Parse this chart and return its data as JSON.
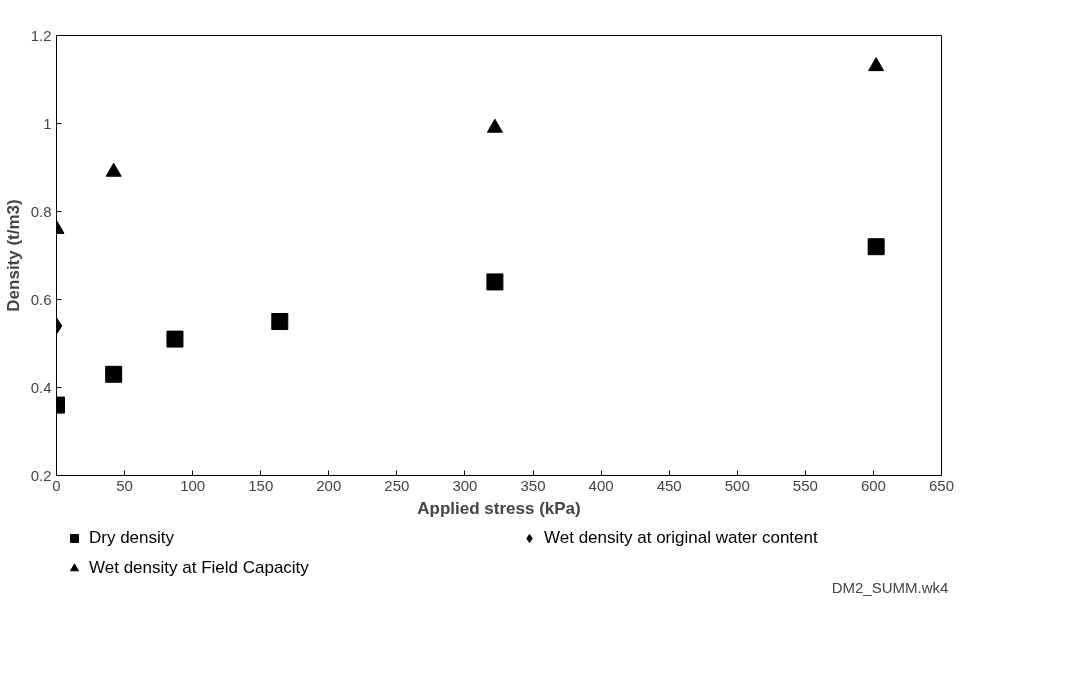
{
  "chart_data": {
    "type": "scatter",
    "xlabel": "Applied stress (kPa)",
    "ylabel": "Density (t/m3)",
    "xlim": [
      0,
      650
    ],
    "xticks": [
      0,
      50,
      100,
      150,
      200,
      250,
      300,
      350,
      400,
      450,
      500,
      550,
      600,
      650
    ],
    "ylim": [
      0.2,
      1.2
    ],
    "yticks": [
      0.2,
      0.4,
      0.6,
      0.8,
      1,
      1.2
    ],
    "grid": false,
    "legend": "bottom",
    "series": [
      {
        "name": "Dry density",
        "color": "#000000",
        "marker": "square",
        "x": [
          0,
          42,
          87,
          164,
          322,
          602
        ],
        "values": [
          0.36,
          0.43,
          0.51,
          0.55,
          0.64,
          0.72
        ]
      },
      {
        "name": "Wet density at Field Capacity",
        "color": "#000000",
        "marker": "triangle",
        "x": [
          0,
          42,
          322,
          602
        ],
        "values": [
          0.76,
          0.89,
          0.99,
          1.13
        ]
      },
      {
        "name": "Wet density at original water content",
        "color": "#000000",
        "marker": "diamond",
        "x": [
          0
        ],
        "values": [
          0.54
        ]
      }
    ],
    "annotations": [
      "DM2_SUMM.wk4"
    ]
  }
}
